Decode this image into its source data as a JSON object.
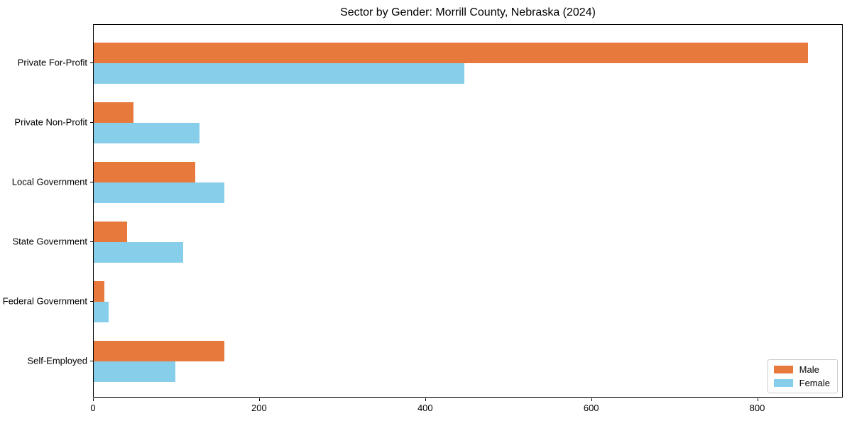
{
  "chart_data": {
    "type": "bar",
    "orientation": "horizontal",
    "title": "Sector by Gender: Morrill County, Nebraska (2024)",
    "categories": [
      "Private For-Profit",
      "Private Non-Profit",
      "Local Government",
      "State Government",
      "Federal Government",
      "Self-Employed"
    ],
    "series": [
      {
        "name": "Male",
        "color": "#e8793d",
        "values": [
          860,
          48,
          122,
          40,
          13,
          157
        ]
      },
      {
        "name": "Female",
        "color": "#87ceeb",
        "values": [
          446,
          127,
          157,
          108,
          18,
          98
        ]
      }
    ],
    "xlabel": "",
    "ylabel": "",
    "xlim": [
      0,
      903
    ],
    "xticks": [
      0,
      200,
      400,
      600,
      800
    ],
    "grid": false,
    "legend": {
      "position": "lower right",
      "labels": [
        "Male",
        "Female"
      ]
    },
    "colors": {
      "axis": "#000000",
      "background": "#ffffff",
      "legend_border": "#cccccc"
    }
  }
}
